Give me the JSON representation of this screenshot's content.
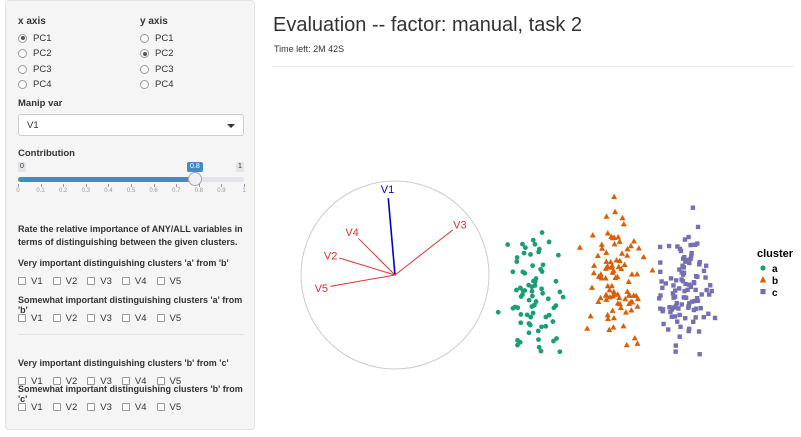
{
  "sidebar": {
    "x_axis": {
      "title": "x axis",
      "options": [
        "PC1",
        "PC2",
        "PC3",
        "PC4"
      ],
      "selected": 0
    },
    "y_axis": {
      "title": "y axis",
      "options": [
        "PC1",
        "PC2",
        "PC3",
        "PC4"
      ],
      "selected": 1
    },
    "manip_var": {
      "label": "Manip var",
      "value": "V1"
    },
    "contribution": {
      "label": "Contribution",
      "min": "0",
      "max": "1",
      "value": "0.8",
      "value_fraction": 0.8,
      "tick_labels": [
        "0",
        "0.1",
        "0.2",
        "0.3",
        "0.4",
        "0.5",
        "0.6",
        "0.7",
        "0.8",
        "0.9",
        "1"
      ]
    },
    "rate_text": "Rate the relative importance of ANY/ALL variables in terms of distinguishing between the given clusters.",
    "groups": [
      {
        "label": "Very important distinguishing clusters 'a' from 'b'",
        "options": [
          "V1",
          "V2",
          "V3",
          "V4",
          "V5"
        ]
      },
      {
        "label": "Somewhat important distinguishing clusters 'a' from 'b'",
        "options": [
          "V1",
          "V2",
          "V3",
          "V4",
          "V5"
        ]
      },
      {
        "label": "Very important distinguishing clusters 'b' from 'c'",
        "options": [
          "V1",
          "V2",
          "V3",
          "V4",
          "V5"
        ]
      },
      {
        "label": "Somewhat important distinguishing clusters 'b' from 'c'",
        "options": [
          "V1",
          "V2",
          "V3",
          "V4",
          "V5"
        ]
      }
    ]
  },
  "main": {
    "title": "Evaluation -- factor: manual, task 2",
    "time_left": "Time left: 2M 42S"
  },
  "plot": {
    "axes": [
      {
        "name": "V1",
        "color": "#0000cc",
        "angle_deg": 95,
        "length": 0.82
      },
      {
        "name": "V3",
        "color": "#e03030",
        "angle_deg": 38,
        "length": 0.78
      },
      {
        "name": "V4",
        "color": "#e03030",
        "angle_deg": 135,
        "length": 0.55
      },
      {
        "name": "V2",
        "color": "#e03030",
        "angle_deg": 163,
        "length": 0.62
      },
      {
        "name": "V5",
        "color": "#e03030",
        "angle_deg": 190,
        "length": 0.7
      }
    ],
    "legend": {
      "title": "cluster",
      "items": [
        {
          "label": "a",
          "color": "#1b9e77",
          "shape": "circle"
        },
        {
          "label": "b",
          "color": "#d95f02",
          "shape": "triangle"
        },
        {
          "label": "c",
          "color": "#7570b3",
          "shape": "square"
        }
      ]
    }
  }
}
